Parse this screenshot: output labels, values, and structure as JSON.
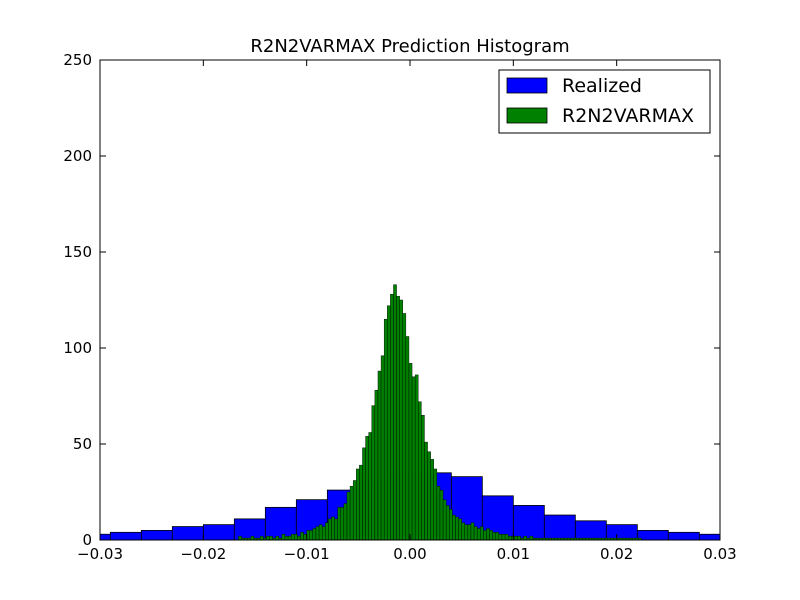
{
  "chart_data": {
    "type": "bar",
    "title": "R2N2VARMAX Prediction Histogram",
    "xlabel": "",
    "ylabel": "",
    "xlim": [
      -0.03,
      0.03
    ],
    "ylim": [
      0,
      250
    ],
    "x_ticks": [
      -0.03,
      -0.02,
      -0.01,
      0.0,
      0.01,
      0.02,
      0.03
    ],
    "x_tick_labels": [
      "−0.03",
      "−0.02",
      "−0.01",
      "0.00",
      "0.01",
      "0.02",
      "0.03"
    ],
    "y_ticks": [
      0,
      50,
      100,
      150,
      200,
      250
    ],
    "y_tick_labels": [
      "0",
      "50",
      "100",
      "150",
      "200",
      "250"
    ],
    "grid": false,
    "legend_position": "top-right",
    "series": [
      {
        "name": "Realized",
        "color": "#0000ff",
        "bin_edges": [
          -0.0316,
          -0.029,
          -0.026,
          -0.023,
          -0.02,
          -0.017,
          -0.014,
          -0.011,
          -0.008,
          -0.005,
          -0.002,
          0.001,
          0.004,
          0.007,
          0.01,
          0.013,
          0.016,
          0.019,
          0.022,
          0.025,
          0.028,
          0.0305
        ],
        "values": [
          3,
          4,
          5,
          7,
          8,
          11,
          17,
          21,
          26,
          31,
          35,
          35,
          33,
          23,
          18,
          13,
          10,
          8,
          5,
          4,
          3
        ]
      },
      {
        "name": "R2N2VARMAX",
        "color": "#008000",
        "bin_edges": [
          -0.0166,
          -0.0163,
          -0.016,
          -0.0157,
          -0.0154,
          -0.0151,
          -0.0148,
          -0.0145,
          -0.0142,
          -0.0139,
          -0.0136,
          -0.0133,
          -0.013,
          -0.0127,
          -0.0124,
          -0.0121,
          -0.0118,
          -0.0115,
          -0.0112,
          -0.0109,
          -0.0106,
          -0.0103,
          -0.01,
          -0.0097,
          -0.0094,
          -0.0091,
          -0.0088,
          -0.0085,
          -0.0082,
          -0.0079,
          -0.0076,
          -0.0073,
          -0.007,
          -0.0067,
          -0.0064,
          -0.0061,
          -0.0058,
          -0.0055,
          -0.0052,
          -0.0049,
          -0.0046,
          -0.0043,
          -0.004,
          -0.0037,
          -0.0034,
          -0.0031,
          -0.0028,
          -0.0025,
          -0.0022,
          -0.0019,
          -0.0016,
          -0.0013,
          -0.001,
          -0.0007,
          -0.0004,
          -0.0001,
          0.0002,
          0.0005,
          0.0008,
          0.0011,
          0.0014,
          0.0017,
          0.002,
          0.0023,
          0.0026,
          0.0029,
          0.0032,
          0.0035,
          0.0038,
          0.0041,
          0.0044,
          0.0047,
          0.005,
          0.0053,
          0.0056,
          0.0059,
          0.0062,
          0.0065,
          0.0068,
          0.0071,
          0.0074,
          0.0077,
          0.008,
          0.0083,
          0.0086,
          0.0089,
          0.0092,
          0.0095,
          0.0098,
          0.0101,
          0.0104,
          0.0107,
          0.011,
          0.0113,
          0.0116,
          0.0119,
          0.0122,
          0.0125,
          0.0128,
          0.0131,
          0.0134,
          0.0137,
          0.014,
          0.0143,
          0.0146,
          0.0149,
          0.0152,
          0.0155,
          0.0158,
          0.0161,
          0.0164,
          0.0167,
          0.017,
          0.0173,
          0.0176,
          0.0179,
          0.0182,
          0.0185,
          0.0188,
          0.0191,
          0.0194,
          0.0197,
          0.02,
          0.0203,
          0.0206,
          0.0209,
          0.0212,
          0.0215,
          0.0218,
          0.0221,
          0.0224
        ],
        "values": [
          2,
          1,
          1,
          1,
          2,
          1,
          1,
          2,
          1,
          2,
          2,
          1,
          2,
          1,
          3,
          2,
          2,
          3,
          3,
          2,
          4,
          3,
          5,
          5,
          6,
          7,
          8,
          7,
          9,
          11,
          12,
          11,
          17,
          17,
          19,
          25,
          28,
          31,
          37,
          39,
          48,
          54,
          56,
          70,
          78,
          88,
          96,
          115,
          122,
          128,
          133,
          127,
          125,
          118,
          106,
          92,
          85,
          86,
          72,
          65,
          51,
          46,
          42,
          37,
          28,
          26,
          21,
          18,
          16,
          13,
          12,
          11,
          9,
          8,
          8,
          9,
          7,
          6,
          7,
          5,
          6,
          5,
          4,
          4,
          3,
          3,
          3,
          2,
          2,
          2,
          2,
          1,
          2,
          1,
          2,
          1,
          1,
          1,
          1,
          1,
          1,
          1,
          1,
          1,
          1,
          1,
          1,
          1,
          1,
          1,
          1,
          1,
          1,
          1,
          1,
          1,
          1,
          1,
          1,
          1,
          1,
          1,
          1,
          1,
          1,
          1,
          1,
          1,
          1,
          1,
          1
        ]
      }
    ]
  }
}
